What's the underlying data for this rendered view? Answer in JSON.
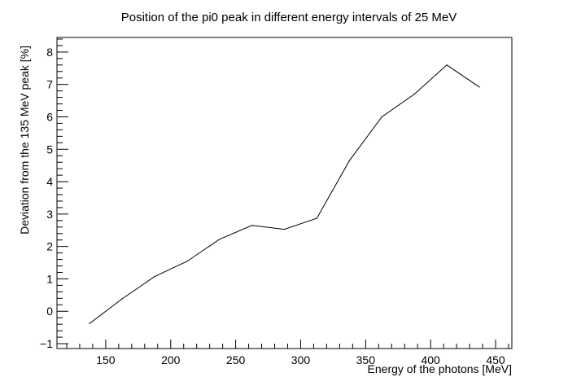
{
  "chart_data": {
    "type": "line",
    "title": "Position of the pi0 peak in different energy intervals of 25 MeV",
    "xlabel": "Energy of the photons [MeV]",
    "ylabel": "Deviation from the 135 MeV peak [%]",
    "xlim": [
      112.5,
      462.5
    ],
    "ylim": [
      -1.15,
      8.45
    ],
    "x_ticks": [
      150,
      200,
      250,
      300,
      350,
      400,
      450
    ],
    "y_ticks": [
      -1,
      0,
      1,
      2,
      3,
      4,
      5,
      6,
      7,
      8
    ],
    "x_tick_labels": [
      "150",
      "200",
      "250",
      "300",
      "350",
      "400",
      "450"
    ],
    "y_tick_labels": [
      "−1",
      "0",
      "1",
      "2",
      "3",
      "4",
      "5",
      "6",
      "7",
      "8"
    ],
    "grid": false,
    "series": [
      {
        "x": [
          137.5,
          162.5,
          187.5,
          212.5,
          237.5,
          262.5,
          287.5,
          312.5,
          337.5,
          362.5,
          387.5,
          412.5,
          437.5
        ],
        "y": [
          -0.38,
          0.38,
          1.07,
          1.54,
          2.22,
          2.65,
          2.53,
          2.87,
          4.65,
          6.0,
          6.7,
          7.6,
          6.92
        ],
        "color": "#000000"
      }
    ]
  }
}
